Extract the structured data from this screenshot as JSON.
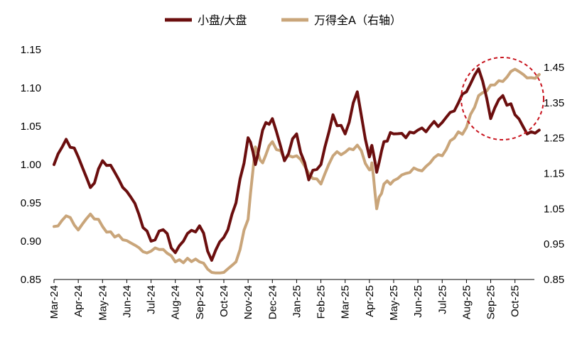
{
  "chart_data": {
    "type": "line",
    "title": "",
    "xlabel": "",
    "ylabel_left": "",
    "ylabel_right": "",
    "ylim_left": [
      0.85,
      1.15
    ],
    "ylim_right": [
      0.85,
      1.45
    ],
    "yticks_left": [
      "1.15",
      "1.10",
      "1.05",
      "1.00",
      "0.95",
      "0.90",
      "0.85"
    ],
    "yticks_right": [
      "1.45",
      "1.35",
      "1.25",
      "1.15",
      "1.05",
      "0.95",
      "0.85"
    ],
    "x_labels": [
      "Mar-24",
      "Apr-24",
      "May-24",
      "Jun-24",
      "Jul-24",
      "Aug-24",
      "Sep-24",
      "Oct-24",
      "Nov-24",
      "Dec-24",
      "Jan-25",
      "Feb-25",
      "Mar-25",
      "Apr-25",
      "May-25",
      "Jun-25",
      "Jul-25",
      "Aug-25",
      "Sep-25",
      "Oct-25"
    ],
    "x": [
      0,
      0.5,
      1,
      1.5,
      2,
      2.5,
      3,
      3.5,
      4,
      4.5,
      5,
      5.5,
      6,
      6.5,
      7,
      7.5,
      8,
      8.3,
      8.6,
      9,
      9.5,
      10,
      10.5,
      11,
      11.5,
      12,
      12.5,
      13,
      13.1,
      13.3,
      13.6,
      14,
      14.5,
      15,
      15.5,
      16,
      16.5,
      17,
      17.5,
      18,
      18.5,
      19,
      19.5,
      20
    ],
    "series": [
      {
        "name": "小盘/大盘",
        "axis": "left",
        "color": "#6B0E0E",
        "values": [
          1.0,
          1.033,
          1.01,
          0.97,
          1.005,
          0.99,
          0.965,
          0.935,
          0.9,
          0.915,
          0.885,
          0.91,
          0.92,
          0.875,
          0.905,
          0.95,
          1.035,
          1.0,
          1.045,
          1.06,
          1.005,
          1.04,
          0.98,
          1.0,
          1.065,
          1.04,
          1.095,
          1.01,
          1.025,
          0.99,
          1.03,
          1.04,
          1.035,
          1.045,
          1.05,
          1.055,
          1.07,
          1.095,
          1.125,
          1.06,
          1.09,
          1.065,
          1.04,
          1.045
        ]
      },
      {
        "name": "万得全A（右轴）",
        "axis": "right",
        "color": "#C9A57A",
        "values": [
          1.0,
          1.03,
          0.99,
          1.035,
          1.0,
          0.97,
          0.96,
          0.94,
          0.93,
          0.935,
          0.9,
          0.91,
          0.9,
          0.87,
          0.87,
          0.9,
          1.02,
          1.225,
          1.18,
          1.24,
          1.19,
          1.2,
          1.15,
          1.12,
          1.2,
          1.21,
          1.23,
          1.16,
          1.18,
          1.05,
          1.12,
          1.13,
          1.15,
          1.16,
          1.18,
          1.2,
          1.25,
          1.28,
          1.37,
          1.4,
          1.41,
          1.445,
          1.42,
          1.43
        ]
      }
    ],
    "legend_position": "top-center",
    "annotation": "red dashed circle highlighting Aug-25 to Oct-25"
  }
}
